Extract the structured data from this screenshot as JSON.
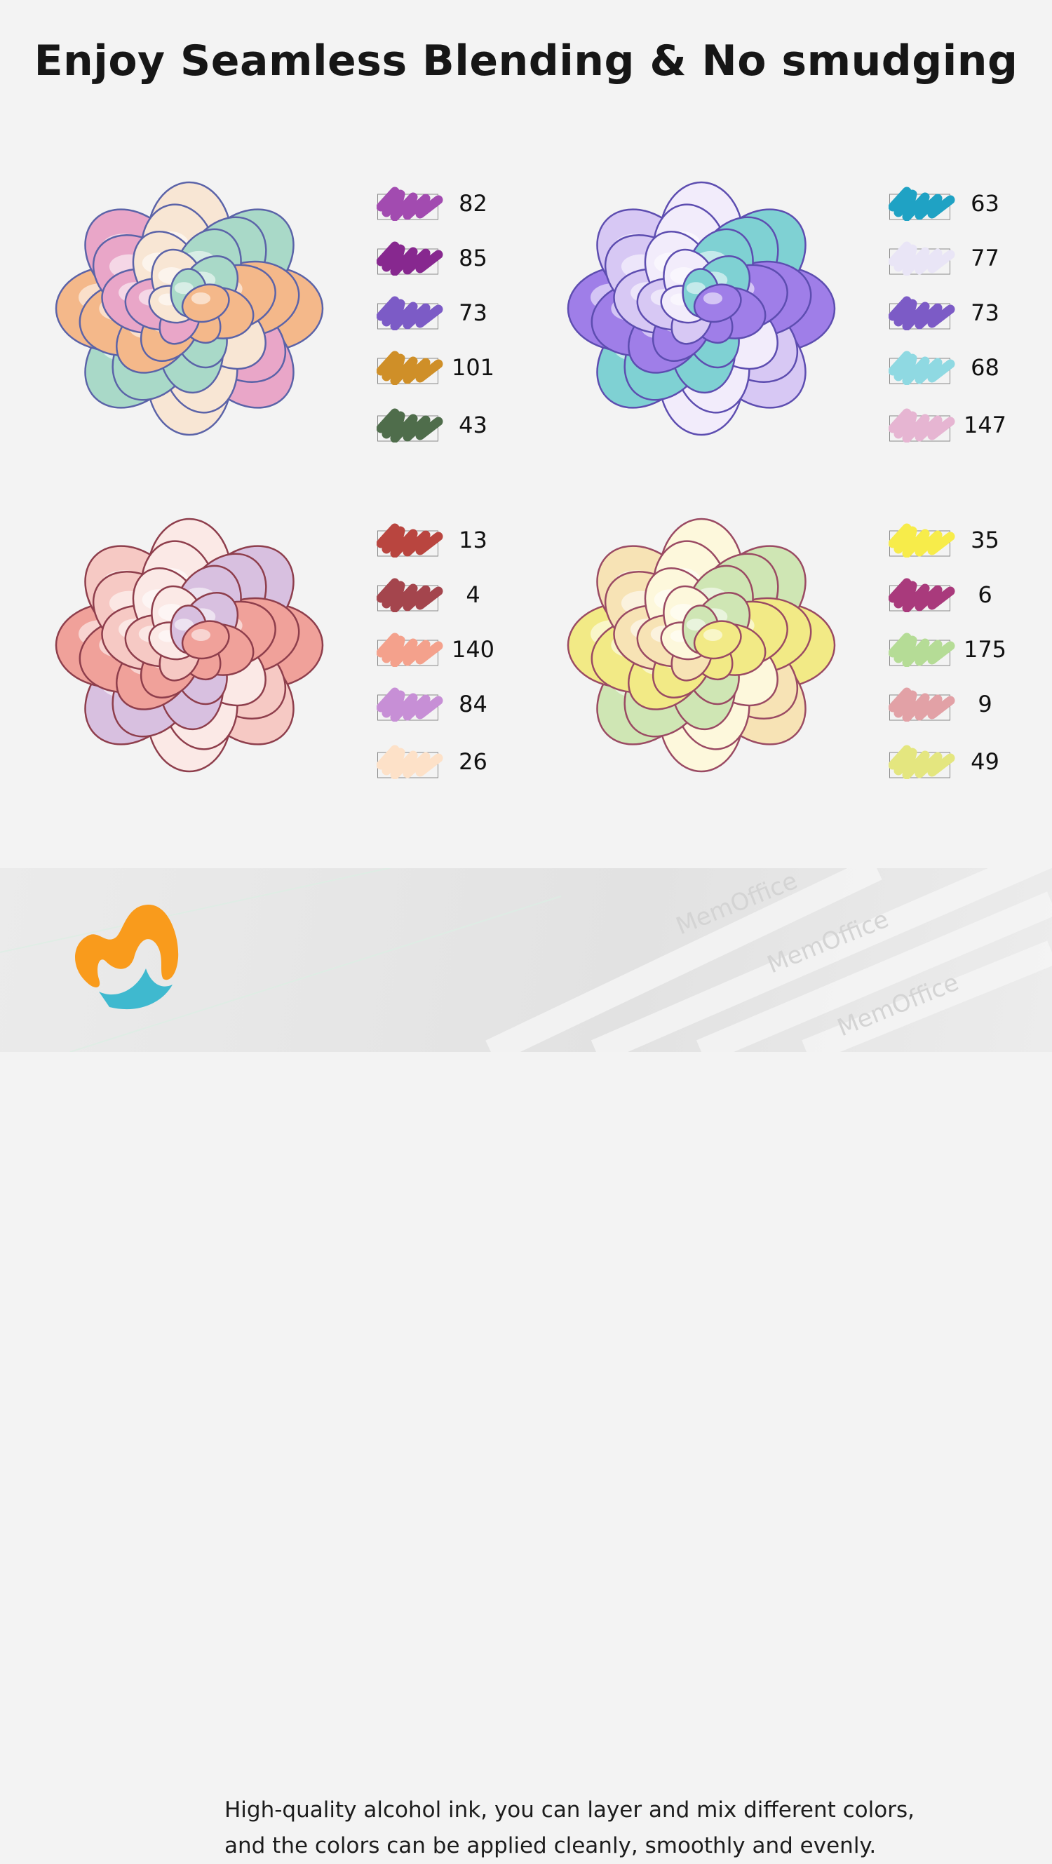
{
  "title": "Enjoy Seamless Blending & No smudging",
  "groups": [
    {
      "flower_palette": [
        "#f4b88a",
        "#e9a6c8",
        "#5b63a8",
        "#f8e6d4",
        "#a9d9c8"
      ],
      "swatches": [
        {
          "number": "82",
          "color": "#a24bb0"
        },
        {
          "number": "85",
          "color": "#87288f"
        },
        {
          "number": "73",
          "color": "#7c5bc6"
        },
        {
          "number": "101",
          "color": "#cf8f28"
        },
        {
          "number": "43",
          "color": "#4f6d4b"
        }
      ]
    },
    {
      "flower_palette": [
        "#9f7ee8",
        "#d7c8f4",
        "#5d4db0",
        "#f2ecfb",
        "#7fd1d3"
      ],
      "swatches": [
        {
          "number": "63",
          "color": "#1fa2c4"
        },
        {
          "number": "77",
          "color": "#e9e5f6"
        },
        {
          "number": "73",
          "color": "#7c5bc6"
        },
        {
          "number": "68",
          "color": "#8fd9e2"
        },
        {
          "number": "147",
          "color": "#e6b5d2"
        }
      ]
    },
    {
      "flower_palette": [
        "#f0a19a",
        "#f6c9c4",
        "#8e3e4c",
        "#fbe9e6",
        "#d8c0e0"
      ],
      "swatches": [
        {
          "number": "13",
          "color": "#b9453f"
        },
        {
          "number": "4",
          "color": "#a4454d"
        },
        {
          "number": "140",
          "color": "#f4a18c"
        },
        {
          "number": "84",
          "color": "#c78fd6"
        },
        {
          "number": "26",
          "color": "#fde1c8"
        }
      ]
    },
    {
      "flower_palette": [
        "#f2ea86",
        "#f7e3b5",
        "#9a4a63",
        "#fdf8dc",
        "#cfe6b4"
      ],
      "swatches": [
        {
          "number": "35",
          "color": "#f7ec4a"
        },
        {
          "number": "6",
          "color": "#a93a7c"
        },
        {
          "number": "175",
          "color": "#b5dc96"
        },
        {
          "number": "9",
          "color": "#e2a1a6"
        },
        {
          "number": "49",
          "color": "#e4e67f"
        }
      ]
    }
  ],
  "caption": {
    "line1": "High-quality alcohol ink, you can layer and mix different colors,",
    "line2": "and the colors can be applied cleanly, smoothly and evenly."
  },
  "logo": {
    "colors": [
      "#f99b1c",
      "#3fb9cf"
    ]
  },
  "background_marker_text": "MemOffice"
}
